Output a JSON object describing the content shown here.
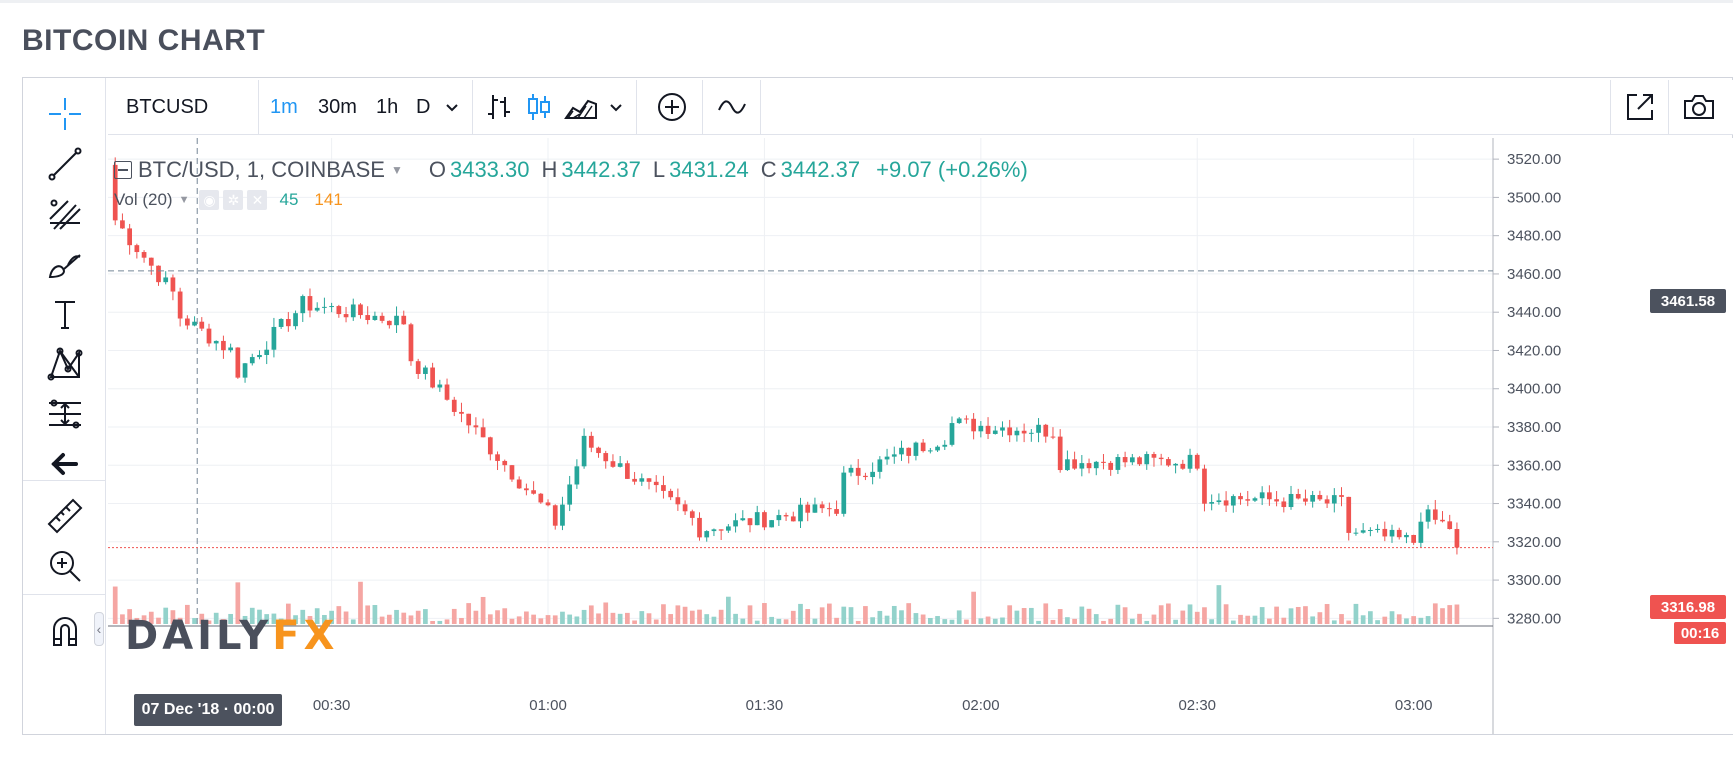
{
  "page_title": "BITCOIN CHART",
  "toolbar": {
    "symbol": "BTCUSD",
    "intervals": [
      "1m",
      "30m",
      "1h",
      "D"
    ],
    "active_interval": "1m"
  },
  "legend": {
    "symbol_line": "BTC/USD, 1, COINBASE",
    "open_label": "O",
    "open": "3433.30",
    "high_label": "H",
    "high": "3442.37",
    "low_label": "L",
    "low": "3431.24",
    "close_label": "C",
    "close": "3442.37",
    "change": "+9.07 (+0.26%)",
    "volume_label": "Vol (20)",
    "volume_a": "45",
    "volume_b": "141"
  },
  "crosshair": {
    "price_label": "3461.58",
    "date_label": "07 Dec '18 · 00:00"
  },
  "last_price": {
    "price": "3316.98",
    "countdown": "00:16"
  },
  "logo": {
    "part1": "DAILY",
    "part2": "FX"
  },
  "colors": {
    "up": "#26a69a",
    "down": "#ef5350",
    "up_vol": "#93d2cb",
    "down_vol": "#f5a6a3",
    "accent": "#2196f3",
    "logo_orange": "#f7941d",
    "logo_dark": "#4a4f5c"
  },
  "icons": [
    "crosshair-icon",
    "trend-line-icon",
    "pitchfork-icon",
    "brush-icon",
    "text-icon",
    "pattern-icon",
    "measure-icon",
    "back-arrow-icon",
    "ruler-icon",
    "zoom-in-icon",
    "magnet-icon",
    "bar-chart-icon",
    "candles-icon",
    "area-icon",
    "chevron-down-icon",
    "add-indicator-icon",
    "compare-icon",
    "popout-icon",
    "camera-icon"
  ],
  "chart_data": {
    "type": "candlestick",
    "yaxis": {
      "ticks": [
        "3520.00",
        "3500.00",
        "3480.00",
        "3460.00",
        "3440.00",
        "3420.00",
        "3400.00",
        "3380.00",
        "3360.00",
        "3340.00",
        "3320.00",
        "3300.00",
        "3280.00"
      ],
      "range": [
        3276,
        3530
      ]
    },
    "xaxis": {
      "ticks": [
        "00:30",
        "01:00",
        "01:30",
        "02:00",
        "02:30",
        "03:00"
      ],
      "range_minutes": [
        -1,
        191
      ]
    },
    "key_points": [
      {
        "t": 0,
        "o": 3517,
        "c": 3488
      },
      {
        "t": 8,
        "o": 3450,
        "c": 3440
      },
      {
        "t": 16,
        "o": 3420,
        "c": 3405
      },
      {
        "t": 25,
        "o": 3440,
        "c": 3445
      },
      {
        "t": 40,
        "o": 3435,
        "c": 3420
      },
      {
        "t": 60,
        "o": 3335,
        "c": 3320
      },
      {
        "t": 64,
        "o": 3360,
        "c": 3375
      },
      {
        "t": 80,
        "o": 3332,
        "c": 3326
      },
      {
        "t": 100,
        "o": 3338,
        "c": 3352
      },
      {
        "t": 115,
        "o": 3375,
        "c": 3382
      },
      {
        "t": 130,
        "o": 3378,
        "c": 3362
      },
      {
        "t": 150,
        "o": 3362,
        "c": 3344
      },
      {
        "t": 170,
        "o": 3340,
        "c": 3326
      },
      {
        "t": 180,
        "o": 3320,
        "c": 3336
      },
      {
        "t": 186,
        "o": 3326,
        "c": 3317
      }
    ]
  }
}
